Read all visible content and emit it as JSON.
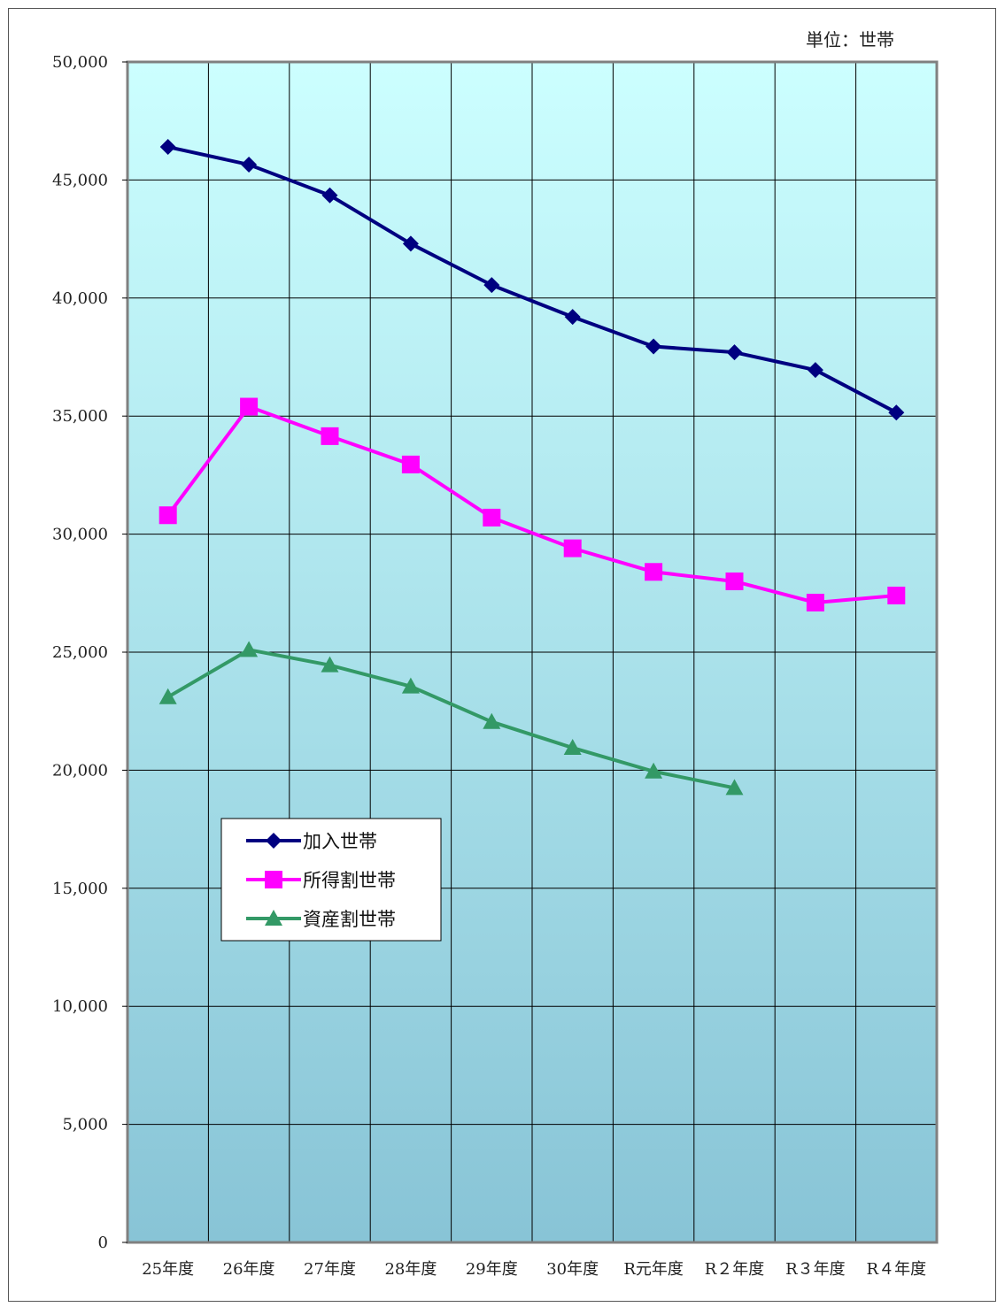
{
  "chart_data": {
    "type": "line",
    "unit_label": "単位：世帯",
    "categories": [
      "25年度",
      "26年度",
      "27年度",
      "28年度",
      "29年度",
      "30年度",
      "R元年度",
      "R２年度",
      "R３年度",
      "R４年度"
    ],
    "ylim": [
      0,
      50000
    ],
    "yticks": [
      0,
      5000,
      10000,
      15000,
      20000,
      25000,
      30000,
      35000,
      40000,
      45000,
      50000
    ],
    "ytick_labels": [
      "0",
      "5,000",
      "10,000",
      "15,000",
      "20,000",
      "25,000",
      "30,000",
      "35,000",
      "40,000",
      "45,000",
      "50,000"
    ],
    "grid": true,
    "legend_position": "center-left",
    "series": [
      {
        "name": "加入世帯",
        "marker": "diamond",
        "color": "#000080",
        "values": [
          46400,
          45650,
          44350,
          42300,
          40550,
          39200,
          37950,
          37700,
          36950,
          35150
        ]
      },
      {
        "name": "所得割世帯",
        "marker": "square",
        "color": "#ff00ff",
        "values": [
          30800,
          35400,
          34150,
          32950,
          30700,
          29400,
          28400,
          28000,
          27100,
          27400
        ]
      },
      {
        "name": "資産割世帯",
        "marker": "triangle",
        "color": "#339966",
        "values": [
          23100,
          25100,
          24450,
          23550,
          22050,
          20950,
          19950,
          19250,
          null,
          null
        ]
      }
    ]
  }
}
